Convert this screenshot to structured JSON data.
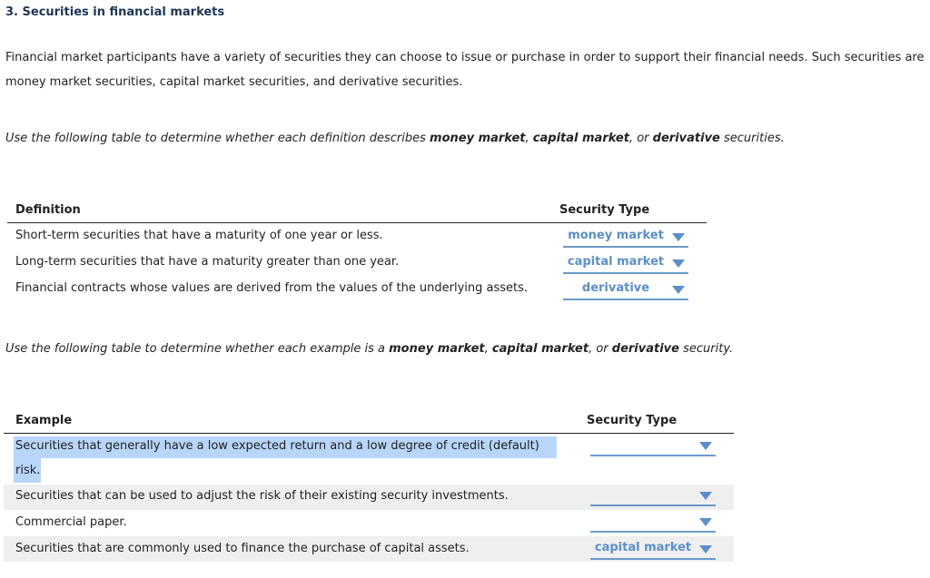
{
  "title": "3. Securities in financial markets",
  "intro": "Financial market participants have a variety of securities they can choose to issue or purchase in order to support their financial needs. Such securities are money market securities, capital market securities, and derivative securities.",
  "instruction1": {
    "pre": "Use the following table to determine whether each definition describes ",
    "t1": "money market",
    "s1": ", ",
    "t2": "capital market",
    "s2": ", or ",
    "t3": "derivative",
    "post": " securities."
  },
  "instruction2": {
    "pre": "Use the following table to determine whether each example is a ",
    "t1": "money market",
    "s1": ", ",
    "t2": "capital market",
    "s2": ", or ",
    "t3": "derivative",
    "post": " security."
  },
  "table1": {
    "col1": "Definition",
    "col2": "Security Type",
    "rows": [
      {
        "text": "Short-term securities that have a maturity of one year or less.",
        "value": "money market"
      },
      {
        "text": "Long-term securities that have a maturity greater than one year.",
        "value": "capital market"
      },
      {
        "text": "Financial contracts whose values are derived from the values of the underlying assets.",
        "value": "derivative"
      }
    ]
  },
  "table2": {
    "col1": "Example",
    "col2": "Security Type",
    "rows": [
      {
        "text_line1": "Securities that generally have a low expected return and a low degree of credit (default)",
        "text_line2": "risk.",
        "value": ""
      },
      {
        "text": "Securities that can be used to adjust the risk of their existing security investments.",
        "value": ""
      },
      {
        "text": "Commercial paper.",
        "value": ""
      },
      {
        "text": "Securities that are commonly used to finance the purchase of capital assets.",
        "value": "capital market"
      }
    ]
  },
  "colors": {
    "dropdown": "#5b8fc7",
    "selection": "#b8d6fb",
    "band": "#efefef"
  }
}
